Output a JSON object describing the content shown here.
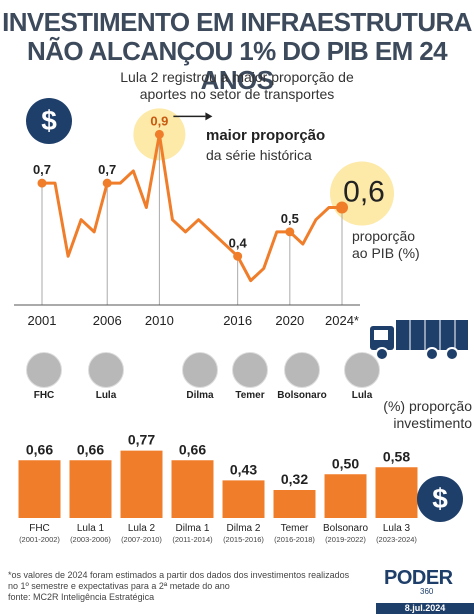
{
  "title_line1": "INVESTIMENTO EM INFRAESTRUTURA",
  "title_line2": "NÃO ALCANÇOU 1% DO PIB EM 24 ANOS",
  "subtitle_line1": "Lula 2 registrou a maior proporção de",
  "subtitle_line2": "aportes no setor de transportes",
  "money_icon": "dollar-sign-icon",
  "annotation": {
    "main": "maior proporção",
    "sub": "da série histórica"
  },
  "line_label": {
    "line1": "proporção",
    "line2": "ao PIB (%)"
  },
  "bar_header": {
    "line1": "(%) proporção",
    "line2": "investimento"
  },
  "presidents": [
    "FHC",
    "Lula",
    "Dilma",
    "Temer",
    "Bolsonaro",
    "Lula"
  ],
  "notes": {
    "line1": "*os valores de 2024 foram estimados a partir dos dados dos investimentos realizados",
    "line2": "no 1º semestre e expectativas para a 2ª metade do ano",
    "line3": "fonte: MC2R Inteligência Estratégica"
  },
  "logo": {
    "name": "PODER",
    "sub": "360",
    "date": "8.jul.2024"
  },
  "colors": {
    "orange": "#f07d2a",
    "navy": "#1f3f6b",
    "title": "#3d4a5c",
    "highlight": "#fde9a8"
  },
  "chart_data": [
    {
      "type": "line",
      "x": [
        2001,
        2002,
        2003,
        2004,
        2005,
        2006,
        2007,
        2008,
        2009,
        2010,
        2011,
        2012,
        2013,
        2014,
        2015,
        2016,
        2017,
        2018,
        2019,
        2020,
        2021,
        2022,
        2023,
        2024
      ],
      "values": [
        0.7,
        0.7,
        0.4,
        0.55,
        0.5,
        0.7,
        0.7,
        0.75,
        0.6,
        0.9,
        0.55,
        0.5,
        0.55,
        0.5,
        0.45,
        0.4,
        0.3,
        0.35,
        0.5,
        0.5,
        0.45,
        0.55,
        0.6,
        0.6
      ],
      "labeled_points": [
        {
          "x": 2001,
          "label": "0,7"
        },
        {
          "x": 2006,
          "label": "0,7"
        },
        {
          "x": 2010,
          "label": "0,9"
        },
        {
          "x": 2016,
          "label": "0,4"
        },
        {
          "x": 2020,
          "label": "0,5"
        },
        {
          "x": 2024,
          "label": "0,6"
        }
      ],
      "x_tick_labels": [
        "2001",
        "2006",
        "2010",
        "2016",
        "2020",
        "2024*"
      ],
      "ylim": [
        0.2,
        1.0
      ]
    },
    {
      "type": "bar",
      "categories": [
        "FHC",
        "Lula 1",
        "Lula 2",
        "Dilma 1",
        "Dilma 2",
        "Temer",
        "Bolsonaro",
        "Lula 3"
      ],
      "periods": [
        "(2001-2002)",
        "(2003-2006)",
        "(2007-2010)",
        "(2011-2014)",
        "(2015-2016)",
        "(2016-2018)",
        "(2019-2022)",
        "(2023-2024)"
      ],
      "values": [
        0.66,
        0.66,
        0.77,
        0.66,
        0.43,
        0.32,
        0.5,
        0.58
      ],
      "value_labels": [
        "0,66",
        "0,66",
        "0,77",
        "0,66",
        "0,43",
        "0,32",
        "0,50",
        "0,58"
      ],
      "ylim": [
        0,
        0.8
      ]
    }
  ]
}
